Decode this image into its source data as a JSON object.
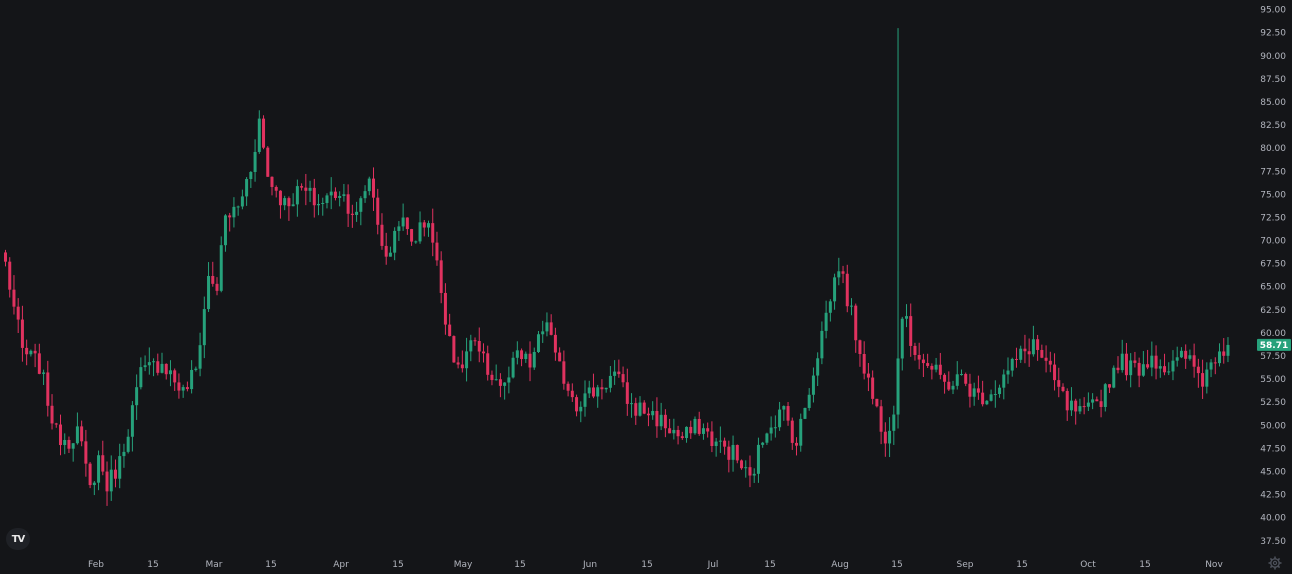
{
  "colors": {
    "background": "#141518",
    "up": "#26a17b",
    "down": "#e0325f",
    "axis_text": "#b2b5be",
    "badge": "#26a17b"
  },
  "logo": {
    "icon": "tradingview-logo-icon",
    "text": "TV"
  },
  "settings": {
    "icon": "gear-icon"
  },
  "last_price_label": "58.71",
  "chart_data": {
    "type": "candlestick",
    "x_axis": {
      "ticks": [
        "Feb",
        "15",
        "Mar",
        "15",
        "Apr",
        "15",
        "May",
        "15",
        "Jun",
        "15",
        "Jul",
        "15",
        "Aug",
        "15",
        "Sep",
        "15",
        "Oct",
        "15",
        "Nov"
      ]
    },
    "y_axis": {
      "range": [
        36.5,
        95.5
      ],
      "ticks": [
        "95.00",
        "92.50",
        "90.00",
        "87.50",
        "85.00",
        "82.50",
        "80.00",
        "77.50",
        "75.00",
        "72.50",
        "70.00",
        "67.50",
        "65.00",
        "62.50",
        "60.00",
        "57.50",
        "55.00",
        "52.50",
        "50.00",
        "47.50",
        "45.00",
        "42.50",
        "40.00",
        "37.50"
      ],
      "position": "right"
    },
    "last_price": 58.71,
    "waypoints": [
      [
        0,
        67.5
      ],
      [
        4,
        58.0
      ],
      [
        8,
        56.5
      ],
      [
        12,
        49.0
      ],
      [
        15,
        48.5
      ],
      [
        17,
        49.5
      ],
      [
        20,
        43.0
      ],
      [
        22,
        46.5
      ],
      [
        24,
        43.5
      ],
      [
        27,
        46.0
      ],
      [
        32,
        55.5
      ],
      [
        37,
        57.0
      ],
      [
        42,
        53.5
      ],
      [
        45,
        56.0
      ],
      [
        48,
        66.0
      ],
      [
        50,
        65.0
      ],
      [
        52,
        72.5
      ],
      [
        55,
        73.5
      ],
      [
        58,
        78.0
      ],
      [
        60,
        83.0
      ],
      [
        62,
        77.0
      ],
      [
        66,
        74.0
      ],
      [
        70,
        75.5
      ],
      [
        74,
        74.0
      ],
      [
        79,
        75.5
      ],
      [
        83,
        72.5
      ],
      [
        86,
        77.0
      ],
      [
        90,
        67.5
      ],
      [
        93,
        72.5
      ],
      [
        96,
        70.0
      ],
      [
        100,
        72.5
      ],
      [
        104,
        62.0
      ],
      [
        107,
        55.5
      ],
      [
        110,
        59.0
      ],
      [
        114,
        56.0
      ],
      [
        118,
        54.0
      ],
      [
        121,
        57.5
      ],
      [
        124,
        56.5
      ],
      [
        128,
        61.5
      ],
      [
        130,
        57.0
      ],
      [
        135,
        52.5
      ],
      [
        140,
        54.0
      ],
      [
        144,
        55.5
      ],
      [
        148,
        52.0
      ],
      [
        152,
        51.5
      ],
      [
        156,
        50.0
      ],
      [
        160,
        48.5
      ],
      [
        164,
        50.0
      ],
      [
        168,
        48.0
      ],
      [
        172,
        47.0
      ],
      [
        176,
        44.0
      ],
      [
        180,
        50.0
      ],
      [
        184,
        51.5
      ],
      [
        187,
        48.0
      ],
      [
        191,
        56.0
      ],
      [
        194,
        62.0
      ],
      [
        197,
        67.5
      ],
      [
        201,
        60.0
      ],
      [
        205,
        53.0
      ],
      [
        208,
        49.0
      ],
      [
        210,
        52.0
      ],
      [
        212,
        62.5
      ],
      [
        214,
        59.0
      ],
      [
        218,
        56.5
      ],
      [
        222,
        54.5
      ],
      [
        226,
        55.0
      ],
      [
        230,
        53.0
      ],
      [
        234,
        54.0
      ],
      [
        239,
        57.0
      ],
      [
        243,
        59.0
      ],
      [
        247,
        55.5
      ],
      [
        251,
        52.0
      ],
      [
        255,
        51.0
      ],
      [
        259,
        53.0
      ],
      [
        263,
        57.0
      ],
      [
        267,
        56.0
      ],
      [
        271,
        57.5
      ],
      [
        275,
        56.0
      ],
      [
        279,
        57.5
      ],
      [
        283,
        55.0
      ],
      [
        287,
        58.5
      ],
      [
        289,
        58.7
      ]
    ],
    "spike": {
      "index": 211,
      "high": 93.0
    }
  }
}
